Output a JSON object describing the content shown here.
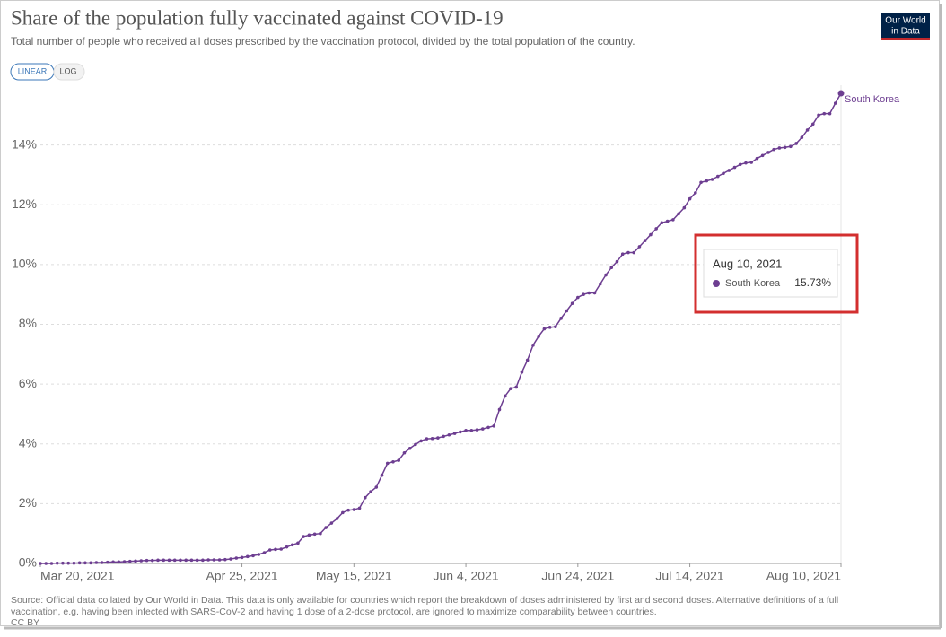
{
  "header": {
    "title": "Share of the population fully vaccinated against COVID-19",
    "subtitle": "Total number of people who received all doses prescribed by the vaccination protocol, divided by the total population of the country.",
    "logo": [
      "Our World",
      "in Data"
    ],
    "buttons": [
      "LINEAR",
      "LOG"
    ]
  },
  "chart_data": {
    "type": "line",
    "x": [
      "2021-03-20",
      "2021-03-21",
      "2021-03-22",
      "2021-03-23",
      "2021-03-24",
      "2021-03-25",
      "2021-03-26",
      "2021-03-27",
      "2021-03-28",
      "2021-03-29",
      "2021-03-30",
      "2021-03-31",
      "2021-04-01",
      "2021-04-02",
      "2021-04-03",
      "2021-04-04",
      "2021-04-05",
      "2021-04-06",
      "2021-04-07",
      "2021-04-08",
      "2021-04-09",
      "2021-04-10",
      "2021-04-11",
      "2021-04-12",
      "2021-04-13",
      "2021-04-14",
      "2021-04-15",
      "2021-04-16",
      "2021-04-17",
      "2021-04-18",
      "2021-04-19",
      "2021-04-20",
      "2021-04-21",
      "2021-04-22",
      "2021-04-23",
      "2021-04-24",
      "2021-04-25",
      "2021-04-26",
      "2021-04-27",
      "2021-04-28",
      "2021-04-29",
      "2021-04-30",
      "2021-05-01",
      "2021-05-02",
      "2021-05-03",
      "2021-05-04",
      "2021-05-05",
      "2021-05-06",
      "2021-05-07",
      "2021-05-08",
      "2021-05-09",
      "2021-05-10",
      "2021-05-11",
      "2021-05-12",
      "2021-05-13",
      "2021-05-14",
      "2021-05-15",
      "2021-05-16",
      "2021-05-17",
      "2021-05-18",
      "2021-05-19",
      "2021-05-20",
      "2021-05-21",
      "2021-05-22",
      "2021-05-23",
      "2021-05-24",
      "2021-05-25",
      "2021-05-26",
      "2021-05-27",
      "2021-05-28",
      "2021-05-29",
      "2021-05-30",
      "2021-05-31",
      "2021-06-01",
      "2021-06-02",
      "2021-06-03",
      "2021-06-04",
      "2021-06-05",
      "2021-06-06",
      "2021-06-07",
      "2021-06-08",
      "2021-06-09",
      "2021-06-10",
      "2021-06-11",
      "2021-06-12",
      "2021-06-13",
      "2021-06-14",
      "2021-06-15",
      "2021-06-16",
      "2021-06-17",
      "2021-06-18",
      "2021-06-19",
      "2021-06-20",
      "2021-06-21",
      "2021-06-22",
      "2021-06-23",
      "2021-06-24",
      "2021-06-25",
      "2021-06-26",
      "2021-06-27",
      "2021-06-28",
      "2021-06-29",
      "2021-06-30",
      "2021-07-01",
      "2021-07-02",
      "2021-07-03",
      "2021-07-04",
      "2021-07-05",
      "2021-07-06",
      "2021-07-07",
      "2021-07-08",
      "2021-07-09",
      "2021-07-10",
      "2021-07-11",
      "2021-07-12",
      "2021-07-13",
      "2021-07-14",
      "2021-07-15",
      "2021-07-16",
      "2021-07-17",
      "2021-07-18",
      "2021-07-19",
      "2021-07-20",
      "2021-07-21",
      "2021-07-22",
      "2021-07-23",
      "2021-07-24",
      "2021-07-25",
      "2021-07-26",
      "2021-07-27",
      "2021-07-28",
      "2021-07-29",
      "2021-07-30",
      "2021-07-31",
      "2021-08-01",
      "2021-08-02",
      "2021-08-03",
      "2021-08-04",
      "2021-08-05",
      "2021-08-06",
      "2021-08-07",
      "2021-08-08",
      "2021-08-09",
      "2021-08-10"
    ],
    "series": [
      {
        "name": "South Korea",
        "color": "#6d3e91",
        "values": [
          0,
          0,
          0,
          0.01,
          0.01,
          0.01,
          0.01,
          0.02,
          0.02,
          0.02,
          0.03,
          0.03,
          0.04,
          0.05,
          0.05,
          0.06,
          0.07,
          0.08,
          0.09,
          0.1,
          0.1,
          0.11,
          0.11,
          0.11,
          0.11,
          0.11,
          0.11,
          0.11,
          0.11,
          0.11,
          0.12,
          0.12,
          0.12,
          0.13,
          0.15,
          0.18,
          0.2,
          0.23,
          0.26,
          0.3,
          0.36,
          0.45,
          0.47,
          0.48,
          0.55,
          0.62,
          0.68,
          0.9,
          0.95,
          0.98,
          1.0,
          1.2,
          1.35,
          1.5,
          1.7,
          1.78,
          1.8,
          1.85,
          2.2,
          2.4,
          2.55,
          2.95,
          3.35,
          3.4,
          3.45,
          3.7,
          3.85,
          3.98,
          4.1,
          4.17,
          4.18,
          4.2,
          4.25,
          4.3,
          4.35,
          4.4,
          4.45,
          4.45,
          4.47,
          4.5,
          4.55,
          4.6,
          5.15,
          5.6,
          5.85,
          5.9,
          6.4,
          6.8,
          7.3,
          7.6,
          7.85,
          7.9,
          7.92,
          8.2,
          8.45,
          8.7,
          8.9,
          9.0,
          9.05,
          9.05,
          9.35,
          9.65,
          9.9,
          10.1,
          10.35,
          10.4,
          10.4,
          10.6,
          10.8,
          11.0,
          11.2,
          11.4,
          11.45,
          11.5,
          11.7,
          11.9,
          12.2,
          12.4,
          12.75,
          12.8,
          12.85,
          12.95,
          13.05,
          13.15,
          13.25,
          13.35,
          13.4,
          13.42,
          13.55,
          13.65,
          13.75,
          13.85,
          13.9,
          13.92,
          13.95,
          14.05,
          14.25,
          14.5,
          14.7,
          15.0,
          15.05,
          15.05,
          15.4,
          15.73
        ]
      }
    ],
    "xlim": [
      "2021-03-20",
      "2021-08-10"
    ],
    "xticks": [
      {
        "value": "2021-03-20",
        "label": "Mar 20, 2021"
      },
      {
        "value": "2021-04-25",
        "label": "Apr 25, 2021"
      },
      {
        "value": "2021-05-15",
        "label": "May 15, 2021"
      },
      {
        "value": "2021-06-04",
        "label": "Jun 4, 2021"
      },
      {
        "value": "2021-06-24",
        "label": "Jun 24, 2021"
      },
      {
        "value": "2021-07-14",
        "label": "Jul 14, 2021"
      },
      {
        "value": "2021-08-10",
        "label": "Aug 10, 2021"
      }
    ],
    "ylim": [
      0,
      16
    ],
    "yticks": [
      {
        "value": 0,
        "label": "0%"
      },
      {
        "value": 2,
        "label": "2%"
      },
      {
        "value": 4,
        "label": "4%"
      },
      {
        "value": 6,
        "label": "6%"
      },
      {
        "value": 8,
        "label": "8%"
      },
      {
        "value": 10,
        "label": "10%"
      },
      {
        "value": 12,
        "label": "12%"
      },
      {
        "value": 14,
        "label": "14%"
      }
    ],
    "grid": true,
    "tooltip": {
      "date": "Aug 10, 2021",
      "value_label": "15.73%"
    }
  },
  "footer": {
    "source": [
      "Source: Official data collated by Our World in Data. This data is only available for countries which report the breakdown of doses administered by first and second doses. Alternative definitions of a full",
      "vaccination, e.g. having been infected with SARS-CoV-2 and having 1 dose of a 2-dose protocol, are ignored to maximize comparability between countries.",
      "CC BY"
    ]
  }
}
